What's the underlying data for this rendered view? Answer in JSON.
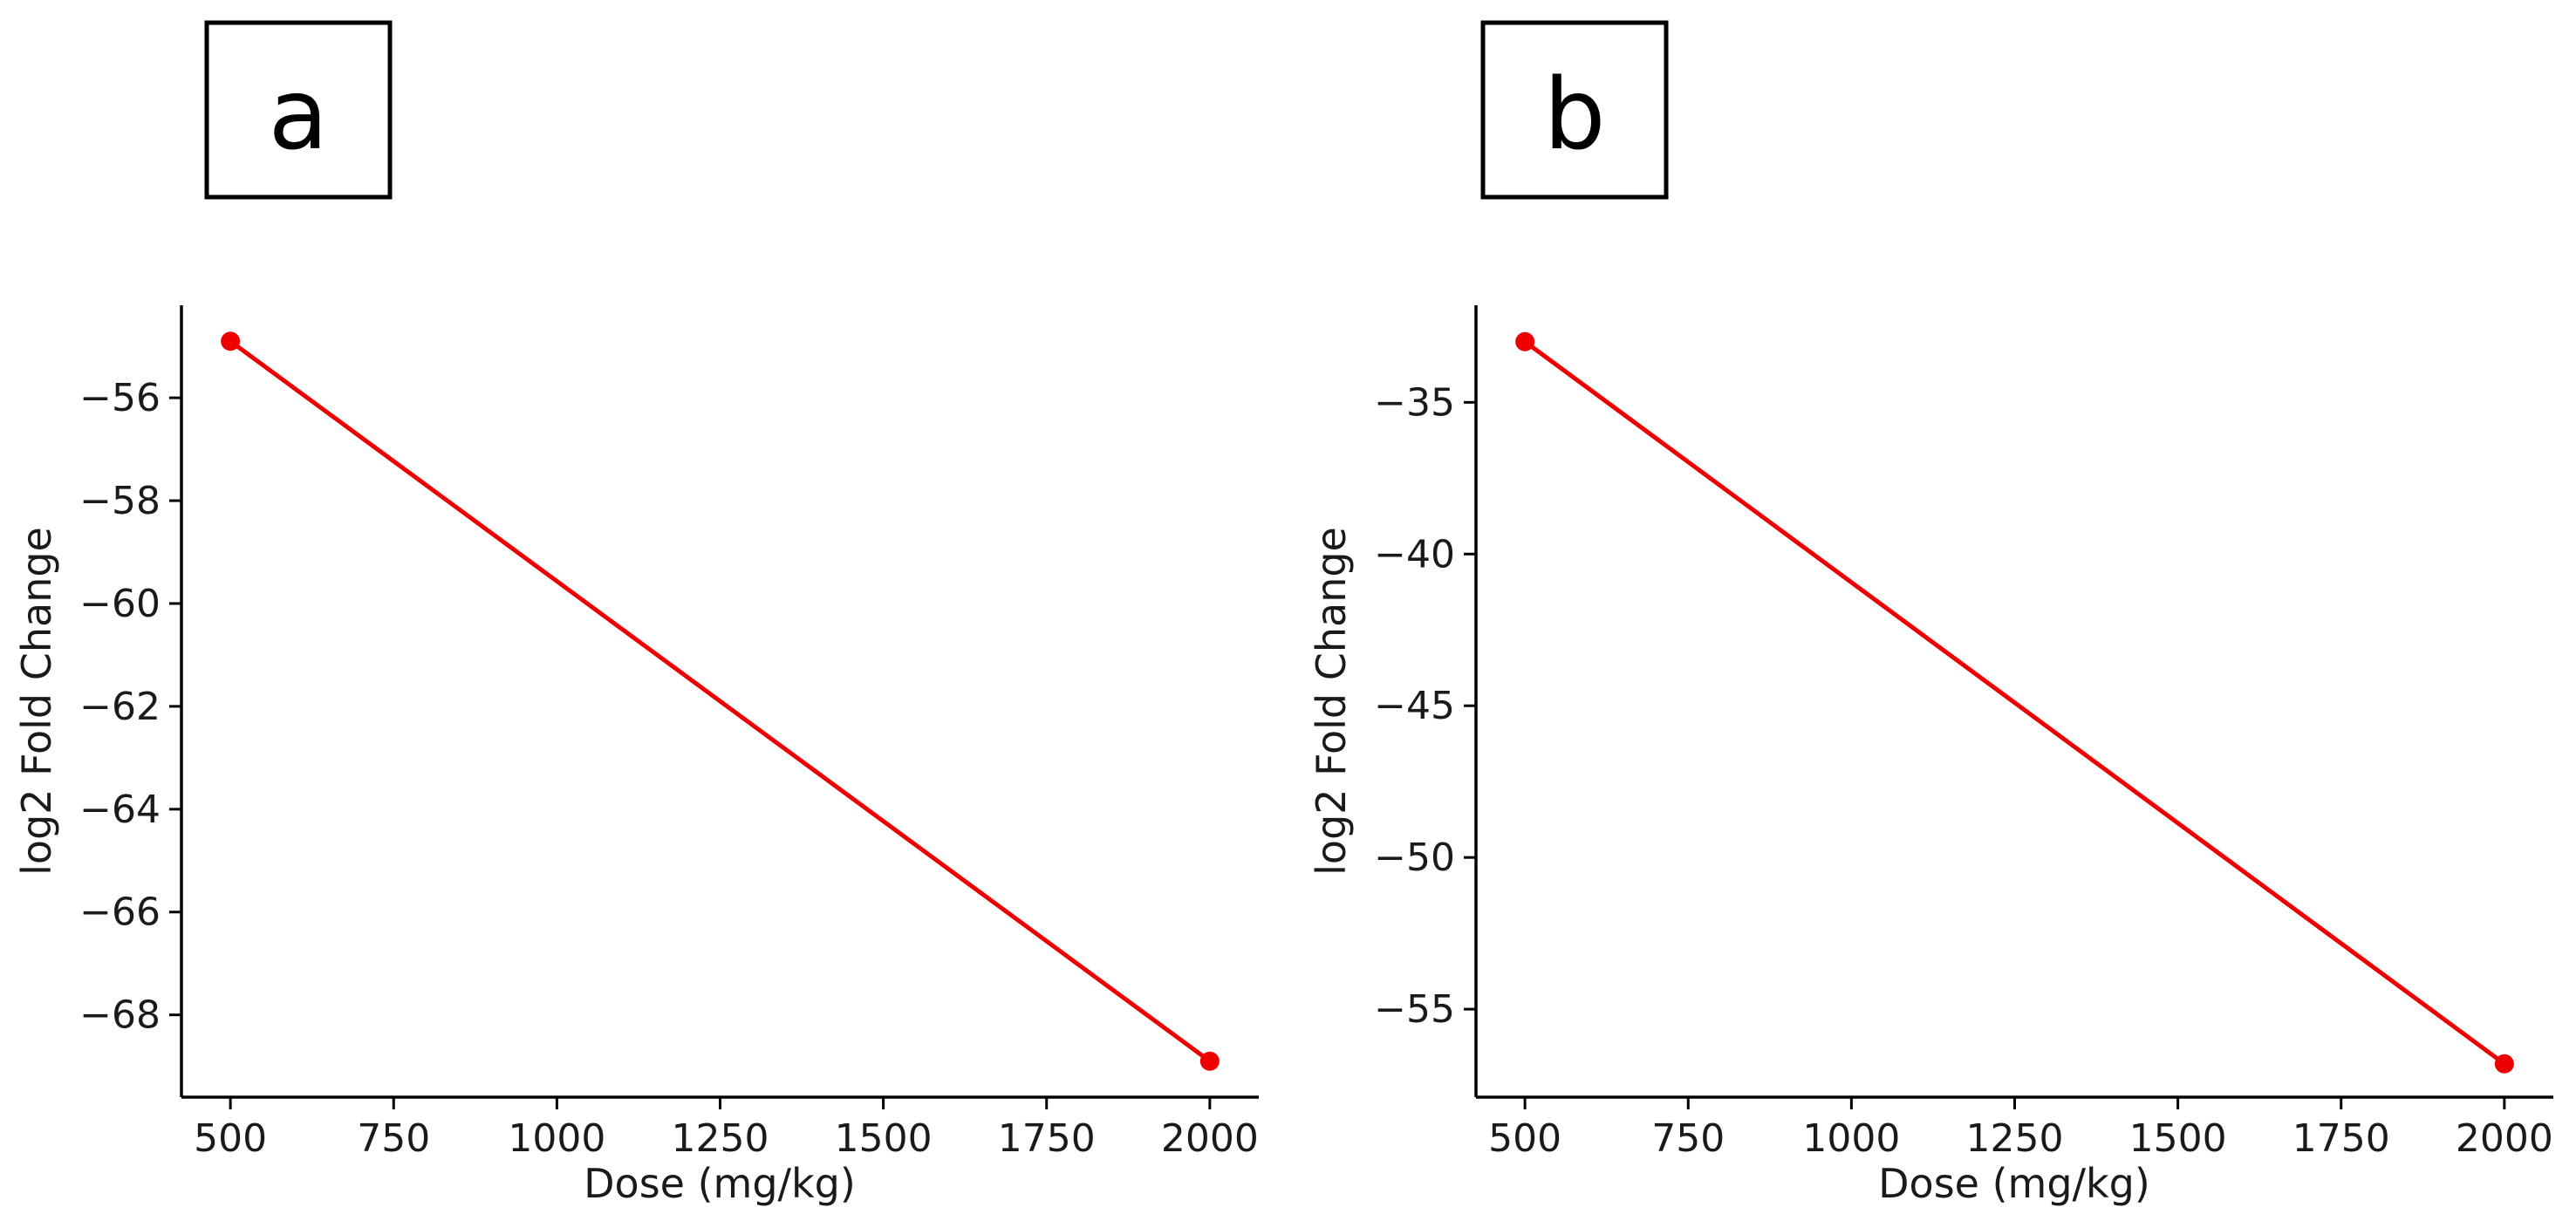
{
  "chart_data": [
    {
      "type": "line",
      "panel_label": "a",
      "xlabel": "Dose (mg/kg)",
      "ylabel": "log2 Fold Change",
      "xlim": [
        425,
        2075
      ],
      "ylim": [
        -69.6,
        -54.2
      ],
      "x_ticks": [
        500,
        750,
        1000,
        1250,
        1500,
        1750,
        2000
      ],
      "y_ticks": [
        -56,
        -58,
        -60,
        -62,
        -64,
        -66,
        -68
      ],
      "series": [
        {
          "color": "#ee0000",
          "points": [
            {
              "x": 500,
              "y": -54.9
            },
            {
              "x": 2000,
              "y": -68.9
            }
          ]
        }
      ]
    },
    {
      "type": "line",
      "panel_label": "b",
      "xlabel": "Dose (mg/kg)",
      "ylabel": "log2 Fold Change",
      "xlim": [
        425,
        2075
      ],
      "ylim": [
        -57.9,
        -31.8
      ],
      "x_ticks": [
        500,
        750,
        1000,
        1250,
        1500,
        1750,
        2000
      ],
      "y_ticks": [
        -35,
        -40,
        -45,
        -50,
        -55
      ],
      "series": [
        {
          "color": "#ee0000",
          "points": [
            {
              "x": 500,
              "y": -33.0
            },
            {
              "x": 2000,
              "y": -56.8
            }
          ]
        }
      ]
    }
  ]
}
